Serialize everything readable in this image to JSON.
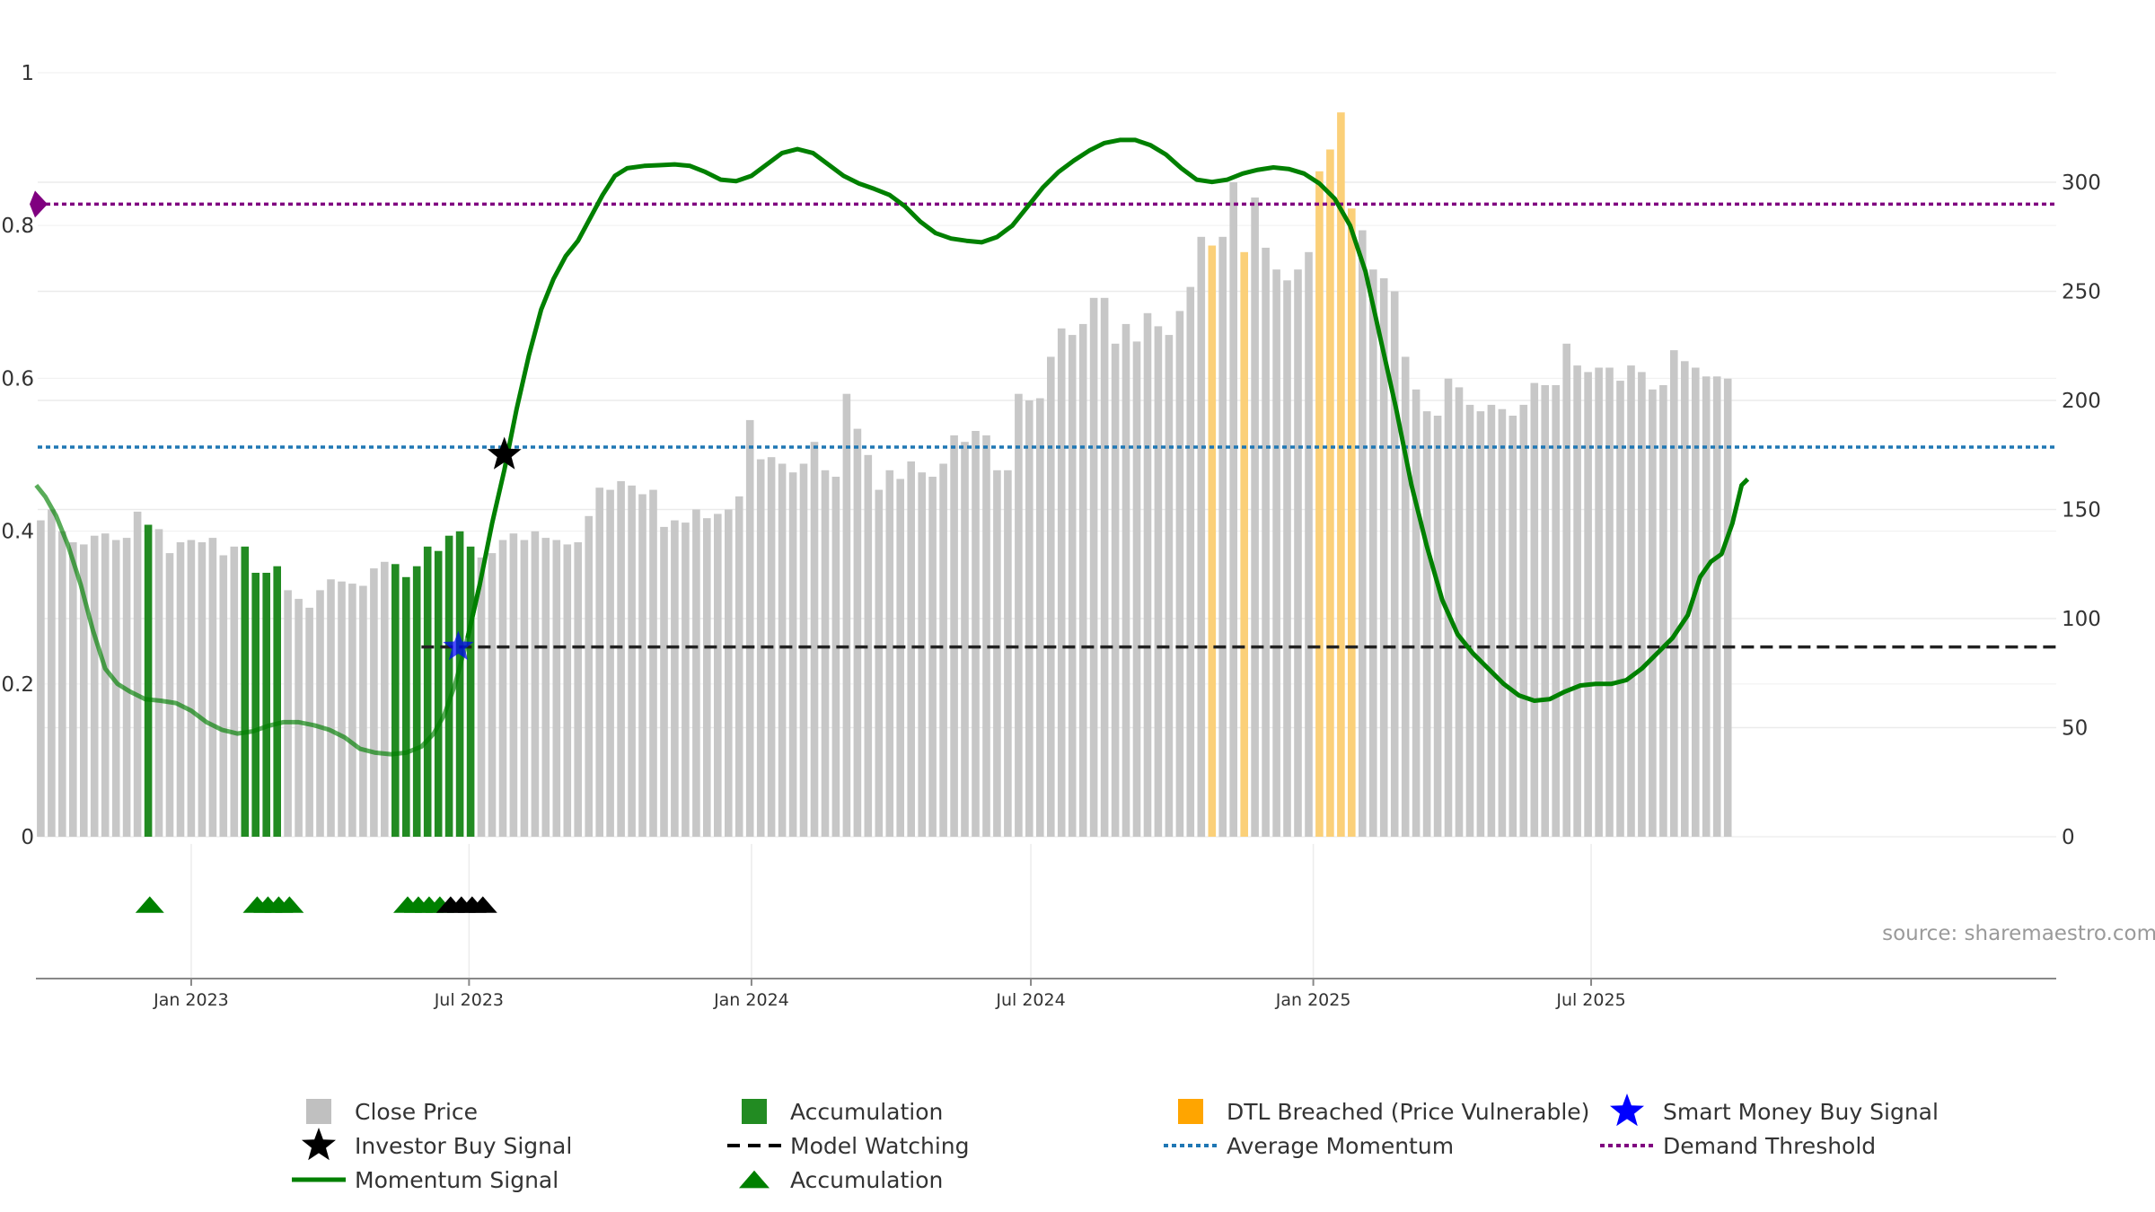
{
  "chart_data": {
    "type": "bar",
    "source": "source: sharemaestro.com",
    "left_axis": {
      "ticks": [
        "0",
        "0.2",
        "0.4",
        "0.6",
        "0.8",
        "1"
      ],
      "range": [
        0,
        1
      ]
    },
    "right_axis": {
      "ticks": [
        "0",
        "50",
        "100",
        "150",
        "200",
        "250",
        "300"
      ],
      "range": [
        0,
        350
      ]
    },
    "x_axis": {
      "range_days": [
        -100,
        1215
      ],
      "ticks": [
        {
          "label": "Jan 2023",
          "day": 0
        },
        {
          "label": "Jul 2023",
          "day": 181
        },
        {
          "label": "Jan 2024",
          "day": 365
        },
        {
          "label": "Jul 2024",
          "day": 547
        },
        {
          "label": "Jan 2025",
          "day": 731
        },
        {
          "label": "Jul 2025",
          "day": 912
        }
      ]
    },
    "bar_start_day": -98,
    "bar_step_days": 7,
    "close_price": [
      145,
      150,
      140,
      135,
      134,
      138,
      139,
      136,
      137,
      149,
      143,
      141,
      130,
      135,
      136,
      135,
      137,
      129,
      133,
      133,
      121,
      121,
      124,
      113,
      109,
      105,
      113,
      118,
      117,
      116,
      115,
      123,
      126,
      125,
      119,
      124,
      133,
      131,
      138,
      140,
      133,
      128,
      130,
      136,
      139,
      136,
      140,
      137,
      136,
      134,
      135,
      147,
      160,
      159,
      163,
      161,
      157,
      159,
      142,
      145,
      144,
      150,
      146,
      148,
      150,
      156,
      191,
      173,
      174,
      171,
      167,
      171,
      181,
      168,
      165,
      203,
      187,
      175,
      159,
      168,
      164,
      172,
      167,
      165,
      171,
      184,
      181,
      186,
      184,
      168,
      168,
      203,
      200,
      201,
      220,
      233,
      230,
      235,
      247,
      247,
      226,
      235,
      227,
      240,
      234,
      230,
      241,
      252,
      275,
      271,
      275,
      300,
      268,
      293,
      270,
      260,
      255,
      260,
      268,
      305,
      315,
      332,
      288,
      278,
      260,
      256,
      250,
      220,
      205,
      195,
      193,
      210,
      206,
      198,
      195,
      198,
      196,
      193,
      198,
      208,
      207,
      207,
      226,
      216,
      213,
      215,
      215,
      209,
      216,
      213,
      205,
      207,
      223,
      218,
      215,
      211,
      211,
      210
    ],
    "bar_category": [
      "p",
      "p",
      "p",
      "p",
      "p",
      "p",
      "p",
      "p",
      "p",
      "p",
      "a",
      "p",
      "p",
      "p",
      "p",
      "p",
      "p",
      "p",
      "p",
      "a",
      "a",
      "a",
      "a",
      "p",
      "p",
      "p",
      "p",
      "p",
      "p",
      "p",
      "p",
      "p",
      "p",
      "a",
      "a",
      "a",
      "a",
      "a",
      "a",
      "a",
      "a",
      "p",
      "p",
      "p",
      "p",
      "p",
      "p",
      "p",
      "p",
      "p",
      "p",
      "p",
      "p",
      "p",
      "p",
      "p",
      "p",
      "p",
      "p",
      "p",
      "p",
      "p",
      "p",
      "p",
      "p",
      "p",
      "p",
      "p",
      "p",
      "p",
      "p",
      "p",
      "p",
      "p",
      "p",
      "p",
      "p",
      "p",
      "p",
      "p",
      "p",
      "p",
      "p",
      "p",
      "p",
      "p",
      "p",
      "p",
      "p",
      "p",
      "p",
      "p",
      "p",
      "p",
      "p",
      "p",
      "p",
      "p",
      "p",
      "p",
      "p",
      "p",
      "p",
      "p",
      "p",
      "p",
      "p",
      "p",
      "p",
      "d",
      "p",
      "p",
      "d",
      "p",
      "p",
      "p",
      "p",
      "p",
      "p",
      "d",
      "d",
      "d",
      "d",
      "p",
      "p",
      "p",
      "p",
      "p",
      "p",
      "p",
      "p",
      "p",
      "p",
      "p",
      "p",
      "p",
      "p",
      "p",
      "p",
      "p",
      "p",
      "p",
      "p",
      "p",
      "p",
      "p",
      "p",
      "p",
      "p",
      "p",
      "p",
      "p",
      "p",
      "p",
      "p",
      "p",
      "p",
      "p"
    ],
    "bar_colors": {
      "p": "#c7c7c7",
      "a": "#228b22",
      "d": "#fbd079"
    },
    "momentum_signal": [
      [
        -101,
        0.46
      ],
      [
        -95,
        0.445
      ],
      [
        -88,
        0.42
      ],
      [
        -80,
        0.38
      ],
      [
        -72,
        0.33
      ],
      [
        -64,
        0.27
      ],
      [
        -56,
        0.22
      ],
      [
        -48,
        0.2
      ],
      [
        -40,
        0.19
      ],
      [
        -30,
        0.18
      ],
      [
        -20,
        0.178
      ],
      [
        -10,
        0.175
      ],
      [
        0,
        0.165
      ],
      [
        10,
        0.15
      ],
      [
        20,
        0.14
      ],
      [
        30,
        0.135
      ],
      [
        40,
        0.138
      ],
      [
        50,
        0.145
      ],
      [
        60,
        0.15
      ],
      [
        70,
        0.15
      ],
      [
        80,
        0.146
      ],
      [
        90,
        0.14
      ],
      [
        100,
        0.13
      ],
      [
        110,
        0.115
      ],
      [
        120,
        0.11
      ],
      [
        130,
        0.108
      ],
      [
        140,
        0.11
      ],
      [
        150,
        0.118
      ],
      [
        158,
        0.135
      ],
      [
        165,
        0.16
      ],
      [
        172,
        0.2
      ],
      [
        180,
        0.26
      ],
      [
        188,
        0.33
      ],
      [
        196,
        0.41
      ],
      [
        204,
        0.48
      ],
      [
        212,
        0.56
      ],
      [
        220,
        0.63
      ],
      [
        228,
        0.69
      ],
      [
        236,
        0.73
      ],
      [
        244,
        0.76
      ],
      [
        252,
        0.78
      ],
      [
        260,
        0.81
      ],
      [
        268,
        0.84
      ],
      [
        276,
        0.865
      ],
      [
        284,
        0.875
      ],
      [
        295,
        0.878
      ],
      [
        305,
        0.879
      ],
      [
        315,
        0.88
      ],
      [
        325,
        0.878
      ],
      [
        335,
        0.87
      ],
      [
        345,
        0.86
      ],
      [
        355,
        0.858
      ],
      [
        365,
        0.865
      ],
      [
        375,
        0.88
      ],
      [
        385,
        0.895
      ],
      [
        395,
        0.9
      ],
      [
        405,
        0.895
      ],
      [
        415,
        0.88
      ],
      [
        425,
        0.865
      ],
      [
        435,
        0.855
      ],
      [
        445,
        0.848
      ],
      [
        455,
        0.84
      ],
      [
        465,
        0.825
      ],
      [
        475,
        0.805
      ],
      [
        485,
        0.79
      ],
      [
        495,
        0.783
      ],
      [
        505,
        0.78
      ],
      [
        515,
        0.778
      ],
      [
        525,
        0.785
      ],
      [
        535,
        0.8
      ],
      [
        545,
        0.825
      ],
      [
        555,
        0.85
      ],
      [
        565,
        0.87
      ],
      [
        575,
        0.885
      ],
      [
        585,
        0.898
      ],
      [
        595,
        0.908
      ],
      [
        605,
        0.912
      ],
      [
        615,
        0.912
      ],
      [
        625,
        0.905
      ],
      [
        635,
        0.893
      ],
      [
        645,
        0.875
      ],
      [
        655,
        0.86
      ],
      [
        665,
        0.857
      ],
      [
        675,
        0.86
      ],
      [
        685,
        0.868
      ],
      [
        695,
        0.873
      ],
      [
        705,
        0.876
      ],
      [
        715,
        0.874
      ],
      [
        725,
        0.868
      ],
      [
        735,
        0.855
      ],
      [
        745,
        0.835
      ],
      [
        755,
        0.8
      ],
      [
        765,
        0.74
      ],
      [
        775,
        0.65
      ],
      [
        785,
        0.56
      ],
      [
        795,
        0.46
      ],
      [
        805,
        0.38
      ],
      [
        815,
        0.31
      ],
      [
        825,
        0.265
      ],
      [
        835,
        0.24
      ],
      [
        845,
        0.22
      ],
      [
        855,
        0.2
      ],
      [
        865,
        0.185
      ],
      [
        875,
        0.178
      ],
      [
        885,
        0.18
      ],
      [
        895,
        0.19
      ],
      [
        905,
        0.198
      ],
      [
        915,
        0.2
      ],
      [
        925,
        0.2
      ],
      [
        935,
        0.205
      ],
      [
        945,
        0.22
      ],
      [
        955,
        0.24
      ],
      [
        965,
        0.26
      ],
      [
        975,
        0.29
      ],
      [
        983,
        0.34
      ],
      [
        990,
        0.36
      ],
      [
        997,
        0.37
      ],
      [
        1004,
        0.41
      ],
      [
        1010,
        0.46
      ],
      [
        1014,
        0.468
      ]
    ],
    "momentum_fade_range_days": [
      -101,
      180
    ],
    "average_momentum": 0.51,
    "demand_threshold": 0.828,
    "model_watching": {
      "price": 87,
      "from_day": 150,
      "to_day": 1215
    },
    "investor_buy_signal": {
      "day": 204,
      "value": 0.5
    },
    "smart_money_buy_signal": {
      "day": 174,
      "price": 87
    },
    "accumulation_markers_days": [
      -27,
      43,
      50,
      57,
      64,
      141,
      148,
      155,
      162
    ],
    "investor_markers_days": [
      169,
      176,
      183,
      190
    ],
    "colors": {
      "momentum": "#008000",
      "average_momentum": "#1f77b4",
      "demand_threshold": "#800080",
      "accumulation": "#228b22",
      "dtl": "#ffa500",
      "smart_money": "#0000ff"
    },
    "legend": [
      {
        "label": "Close Price",
        "kind": "square",
        "color": "#c0c0c0"
      },
      {
        "label": "Accumulation",
        "kind": "square",
        "color": "#228b22"
      },
      {
        "label": "DTL Breached (Price Vulnerable)",
        "kind": "square",
        "color": "#ffa500"
      },
      {
        "label": "Smart Money Buy Signal",
        "kind": "star",
        "color": "#0000ff"
      },
      {
        "label": "Investor Buy Signal",
        "kind": "star",
        "color": "#000000"
      },
      {
        "label": "Model Watching",
        "kind": "dash",
        "color": "#000000"
      },
      {
        "label": "Average Momentum",
        "kind": "dot",
        "color": "#1f77b4"
      },
      {
        "label": "Demand Threshold",
        "kind": "dot",
        "color": "#800080"
      },
      {
        "label": "Momentum Signal",
        "kind": "line",
        "color": "#008000"
      },
      {
        "label": "Accumulation",
        "kind": "triangle",
        "color": "#008000"
      }
    ]
  }
}
